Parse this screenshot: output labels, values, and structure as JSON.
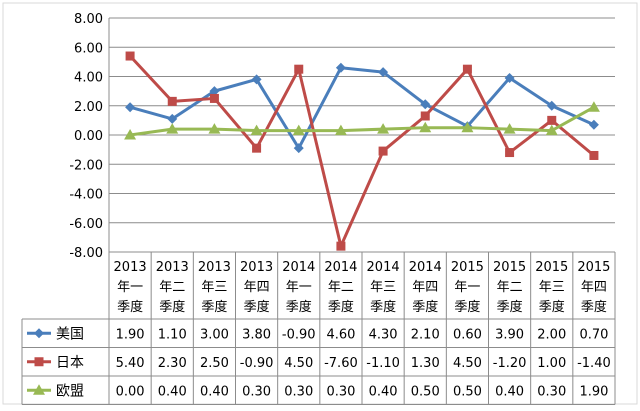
{
  "chart_data": {
    "type": "line",
    "categories": [
      [
        "2013",
        "年一",
        "季度"
      ],
      [
        "2013",
        "年二",
        "季度"
      ],
      [
        "2013",
        "年三",
        "季度"
      ],
      [
        "2013",
        "年四",
        "季度"
      ],
      [
        "2014",
        "年一",
        "季度"
      ],
      [
        "2014",
        "年二",
        "季度"
      ],
      [
        "2014",
        "年三",
        "季度"
      ],
      [
        "2014",
        "年四",
        "季度"
      ],
      [
        "2015",
        "年一",
        "季度"
      ],
      [
        "2015",
        "年二",
        "季度"
      ],
      [
        "2015",
        "年三",
        "季度"
      ],
      [
        "2015",
        "年四",
        "季度"
      ]
    ],
    "series": [
      {
        "name": "美国",
        "color": "#4a7ebb",
        "marker": "diamond",
        "values": [
          1.9,
          1.1,
          3.0,
          3.8,
          -0.9,
          4.6,
          4.3,
          2.1,
          0.6,
          3.9,
          2.0,
          0.7
        ],
        "labels": [
          "1.90",
          "1.10",
          "3.00",
          "3.80",
          "-0.90",
          "4.60",
          "4.30",
          "2.10",
          "0.60",
          "3.90",
          "2.00",
          "0.70"
        ]
      },
      {
        "name": "日本",
        "color": "#be4b48",
        "marker": "square",
        "values": [
          5.4,
          2.3,
          2.5,
          -0.9,
          4.5,
          -7.6,
          -1.1,
          1.3,
          4.5,
          -1.2,
          1.0,
          -1.4
        ],
        "labels": [
          "5.40",
          "2.30",
          "2.50",
          "-0.90",
          "4.50",
          "-7.60",
          "-1.10",
          "1.30",
          "4.50",
          "-1.20",
          "1.00",
          "-1.40"
        ]
      },
      {
        "name": "欧盟",
        "color": "#98b954",
        "marker": "triangle",
        "values": [
          0.0,
          0.4,
          0.4,
          0.3,
          0.3,
          0.3,
          0.4,
          0.5,
          0.5,
          0.4,
          0.3,
          1.9
        ],
        "labels": [
          "0.00",
          "0.40",
          "0.40",
          "0.30",
          "0.30",
          "0.30",
          "0.40",
          "0.50",
          "0.50",
          "0.40",
          "0.30",
          "1.90"
        ]
      }
    ],
    "ylim": [
      -8,
      8
    ],
    "yticks": [
      8,
      6,
      4,
      2,
      0,
      -2,
      -4,
      -6,
      -8
    ],
    "ytick_labels": [
      "8.00",
      "6.00",
      "4.00",
      "2.00",
      "0.00",
      "-2.00",
      "-4.00",
      "-6.00",
      "-8.00"
    ],
    "grid": true,
    "data_table": true
  }
}
